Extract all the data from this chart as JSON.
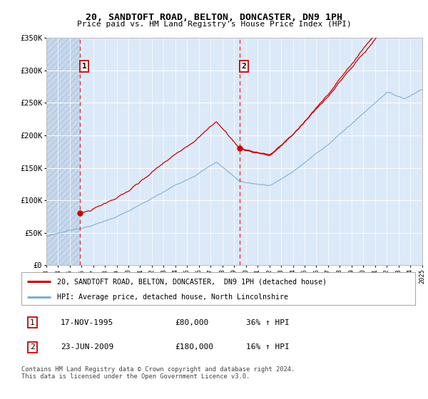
{
  "title": "20, SANDTOFT ROAD, BELTON, DONCASTER, DN9 1PH",
  "subtitle": "Price paid vs. HM Land Registry's House Price Index (HPI)",
  "legend_line1": "20, SANDTOFT ROAD, BELTON, DONCASTER,  DN9 1PH (detached house)",
  "legend_line2": "HPI: Average price, detached house, North Lincolnshire",
  "transaction1_date": "17-NOV-1995",
  "transaction1_price": "£80,000",
  "transaction1_hpi": "36% ↑ HPI",
  "transaction1_year": 1995.88,
  "transaction1_value": 80000,
  "transaction2_date": "23-JUN-2009",
  "transaction2_price": "£180,000",
  "transaction2_hpi": "16% ↑ HPI",
  "transaction2_year": 2009.47,
  "transaction2_value": 180000,
  "footer": "Contains HM Land Registry data © Crown copyright and database right 2024.\nThis data is licensed under the Open Government Licence v3.0.",
  "xmin": 1993,
  "xmax": 2025,
  "ymin": 0,
  "ymax": 350000,
  "yticks": [
    0,
    50000,
    100000,
    150000,
    200000,
    250000,
    300000,
    350000
  ],
  "ylabels": [
    "£0",
    "£50K",
    "£100K",
    "£150K",
    "£200K",
    "£250K",
    "£300K",
    "£350K"
  ],
  "background_color": "#dce9f8",
  "hatch_region_color": "#c8d8ec",
  "line_color_red": "#cc0000",
  "line_color_blue": "#7bafd4",
  "grid_color": "#ffffff",
  "transaction_line_color": "#ee3333",
  "marker_color_red": "#cc0000"
}
